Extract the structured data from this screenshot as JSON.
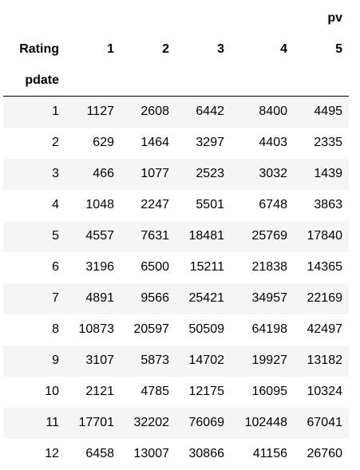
{
  "table": {
    "top_header": "pv",
    "columns_index_label": "Rating",
    "row_index_label": "pdate",
    "columns": [
      "1",
      "2",
      "3",
      "4",
      "5"
    ],
    "rows": [
      {
        "index": "1",
        "values": [
          "1127",
          "2608",
          "6442",
          "8400",
          "4495"
        ]
      },
      {
        "index": "2",
        "values": [
          "629",
          "1464",
          "3297",
          "4403",
          "2335"
        ]
      },
      {
        "index": "3",
        "values": [
          "466",
          "1077",
          "2523",
          "3032",
          "1439"
        ]
      },
      {
        "index": "4",
        "values": [
          "1048",
          "2247",
          "5501",
          "6748",
          "3863"
        ]
      },
      {
        "index": "5",
        "values": [
          "4557",
          "7631",
          "18481",
          "25769",
          "17840"
        ]
      },
      {
        "index": "6",
        "values": [
          "3196",
          "6500",
          "15211",
          "21838",
          "14365"
        ]
      },
      {
        "index": "7",
        "values": [
          "4891",
          "9566",
          "25421",
          "34957",
          "22169"
        ]
      },
      {
        "index": "8",
        "values": [
          "10873",
          "20597",
          "50509",
          "64198",
          "42497"
        ]
      },
      {
        "index": "9",
        "values": [
          "3107",
          "5873",
          "14702",
          "19927",
          "13182"
        ]
      },
      {
        "index": "10",
        "values": [
          "2121",
          "4785",
          "12175",
          "16095",
          "10324"
        ]
      },
      {
        "index": "11",
        "values": [
          "17701",
          "32202",
          "76069",
          "102448",
          "67041"
        ]
      },
      {
        "index": "12",
        "values": [
          "6458",
          "13007",
          "30866",
          "41156",
          "26760"
        ]
      }
    ]
  },
  "colors": {
    "stripe": "#f5f5f5",
    "background": "#ffffff",
    "rule": "#000000"
  }
}
